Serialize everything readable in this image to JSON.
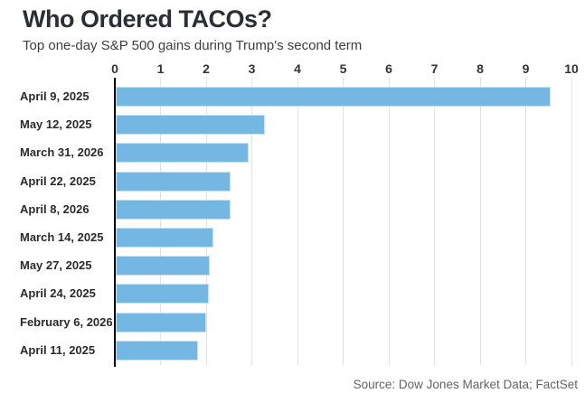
{
  "header": {
    "title": "Who Ordered TACOs?",
    "subtitle": "Top one-day S&P 500 gains during Trump's second term"
  },
  "chart_data": {
    "type": "bar",
    "orientation": "horizontal",
    "title": "Who Ordered TACOs?",
    "subtitle": "Top one-day S&P 500 gains during Trump's second term",
    "categories": [
      "April 9, 2025",
      "May 12, 2025",
      "March 31, 2026",
      "April 22, 2025",
      "April 8, 2026",
      "March 14, 2025",
      "May 27, 2025",
      "April 24, 2025",
      "February 6, 2026",
      "April 11, 2025"
    ],
    "values": [
      9.52,
      3.26,
      2.92,
      2.52,
      2.51,
      2.13,
      2.05,
      2.03,
      1.98,
      1.81
    ],
    "unit": "percent",
    "xlabel": "",
    "ylabel": "",
    "xlim": [
      0,
      10
    ],
    "xticks": [
      0,
      1,
      2,
      3,
      4,
      5,
      6,
      7,
      8,
      9,
      10
    ],
    "grid": true,
    "legend": "none",
    "tick_position": "top"
  },
  "footer": {
    "source": "Source: Dow Jones Market Data; FactSet"
  },
  "colors": {
    "bar": "#74b7e2",
    "bar_border": "#c9e2f3",
    "grid": "#e2e2e2",
    "axis": "#000000",
    "title": "#2b2e33",
    "subtitle": "#3d3d3d",
    "label": "#2b2b2b",
    "tick": "#333333",
    "tickmark": "#b5b5b5",
    "source": "#636363"
  }
}
